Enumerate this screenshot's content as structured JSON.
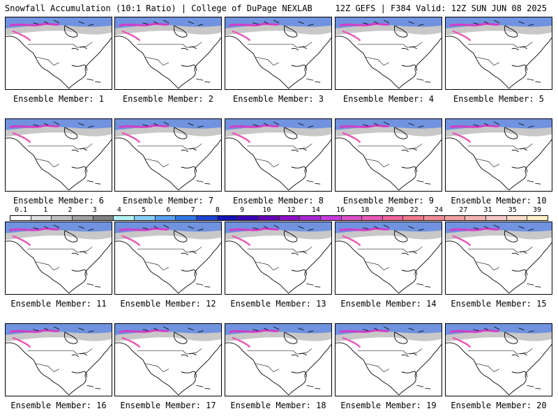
{
  "header": {
    "left": "Snowfall Accumulation (10:1 Ratio) | College of DuPage NEXLAB",
    "right": "12Z GEFS | F384 Valid: 12Z SUN JUN 08 2025"
  },
  "legend": {
    "ticks": [
      "0.1",
      "1",
      "2",
      "3",
      "4",
      "5",
      "6",
      "7",
      "8",
      "9",
      "10",
      "12",
      "14",
      "16",
      "18",
      "20",
      "22",
      "24",
      "27",
      "31",
      "35",
      "39"
    ],
    "colors": [
      "#ffffff",
      "#e0e0e0",
      "#c0c0c0",
      "#a0a0a0",
      "#808080",
      "#b4f0f0",
      "#87cefa",
      "#5aa0f0",
      "#3278e6",
      "#1e46d2",
      "#1414b4",
      "#3c00b4",
      "#6400b4",
      "#8c14c8",
      "#aa28d2",
      "#c83cdc",
      "#dc50c8",
      "#e65ab4",
      "#f064a0",
      "#f0788c",
      "#f08c96",
      "#f0a0a0",
      "#f5b4b4",
      "#f5c8c8",
      "#fadcc8",
      "#fff0c8"
    ]
  },
  "members": [
    {
      "label": "Ensemble Member: 1"
    },
    {
      "label": "Ensemble Member: 2"
    },
    {
      "label": "Ensemble Member: 3"
    },
    {
      "label": "Ensemble Member: 4"
    },
    {
      "label": "Ensemble Member: 5"
    },
    {
      "label": "Ensemble Member: 6"
    },
    {
      "label": "Ensemble Member: 7"
    },
    {
      "label": "Ensemble Member: 8"
    },
    {
      "label": "Ensemble Member: 9"
    },
    {
      "label": "Ensemble Member: 10"
    },
    {
      "label": "Ensemble Member: 11"
    },
    {
      "label": "Ensemble Member: 12"
    },
    {
      "label": "Ensemble Member: 13"
    },
    {
      "label": "Ensemble Member: 14"
    },
    {
      "label": "Ensemble Member: 15"
    },
    {
      "label": "Ensemble Member: 16"
    },
    {
      "label": "Ensemble Member: 17"
    },
    {
      "label": "Ensemble Member: 18"
    },
    {
      "label": "Ensemble Member: 19"
    },
    {
      "label": "Ensemble Member: 20"
    }
  ]
}
